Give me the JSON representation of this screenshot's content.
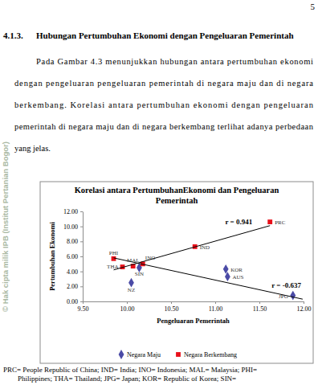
{
  "page_number": "5",
  "heading": {
    "number": "4.1.3.",
    "title": "Hubungan Pertumbuhan Ekonomi dengan Pengeluaran Pemerintah"
  },
  "paragraph": [
    "Pada Gambar 4.3 menunjukkan hubungan  antara pertumbuhan ekonomi",
    "dengan pengeluaran pengeluaran pemerintah di negara maju dan di negara",
    "berkembang.  Korelasi antara pertumbuhan ekonomi dengan pengeluaran",
    "pemerintah di negara maju dan di negara berkembang terlihat adanya perbedaan",
    "yang jelas."
  ],
  "watermark": "© Hak cipta milik IPB (Institut Pertanian Bogor)",
  "chart_data": {
    "type": "scatter",
    "title": "Korelasi antara PertumbuhanEkonomi dan Pengeluaran Pemerintah",
    "x_label": "Pengeluaran Pemerintah",
    "y_label": "Pertumbuhan Ekonomi",
    "xlim": [
      9.5,
      12
    ],
    "xticks": [
      {
        "value": 9.5,
        "label": "9.50"
      },
      {
        "value": 10,
        "label": "10.00"
      },
      {
        "value": 10.5,
        "label": "10.50"
      },
      {
        "value": 11,
        "label": "11.00"
      },
      {
        "value": 11.5,
        "label": "11.50"
      },
      {
        "value": 12,
        "label": "12.00"
      }
    ],
    "ylim": [
      0,
      12
    ],
    "yticks": [
      {
        "value": 0,
        "label": "0.00"
      },
      {
        "value": 2,
        "label": "2.00"
      },
      {
        "value": 4,
        "label": "4.00"
      },
      {
        "value": 6,
        "label": "6.00"
      },
      {
        "value": 8,
        "label": "8.00"
      },
      {
        "value": 10,
        "label": "10.00"
      },
      {
        "value": 12,
        "label": "12.00"
      }
    ],
    "grid": false,
    "legend": "bottom",
    "series": [
      {
        "name": "Negara Maju",
        "color": "#4b4ba6",
        "marker": "diamond",
        "x": [
          10.14,
          10.05,
          11.12,
          11.14,
          11.88
        ],
        "values": [
          4.5,
          2.5,
          4.3,
          3.3,
          0.8
        ],
        "labels": [
          "SIN",
          "NZ",
          "KOR",
          "AUS",
          "JPG"
        ]
      },
      {
        "name": "Negara Berkembang",
        "color": "#e8101a",
        "marker": "square",
        "x": [
          9.85,
          9.95,
          10.07,
          10.18,
          10.77,
          11.62
        ],
        "values": [
          5.7,
          4.6,
          4.7,
          5.0,
          7.3,
          10.6
        ],
        "labels": [
          "PHI",
          "THA",
          "MAL",
          "INO",
          "IND",
          "PRC"
        ]
      },
      {
        "type": "line",
        "color": "#000000",
        "x": [
          9.85,
          11.62
        ],
        "values": [
          4.2,
          10.1
        ],
        "label": "r = 0.941"
      },
      {
        "type": "line",
        "color": "#000000",
        "x": [
          9.85,
          11.99
        ],
        "values": [
          5.8,
          0.3
        ],
        "label": "r = -0.637"
      }
    ]
  },
  "caption": [
    "PRC= People Republic of China; IND= India; INO= Indonesia; MAL= Malaysia; PHI=",
    "Philippines; THA= Thailand; JPG= Japan; KOR= Republic of Korea; SIN="
  ]
}
